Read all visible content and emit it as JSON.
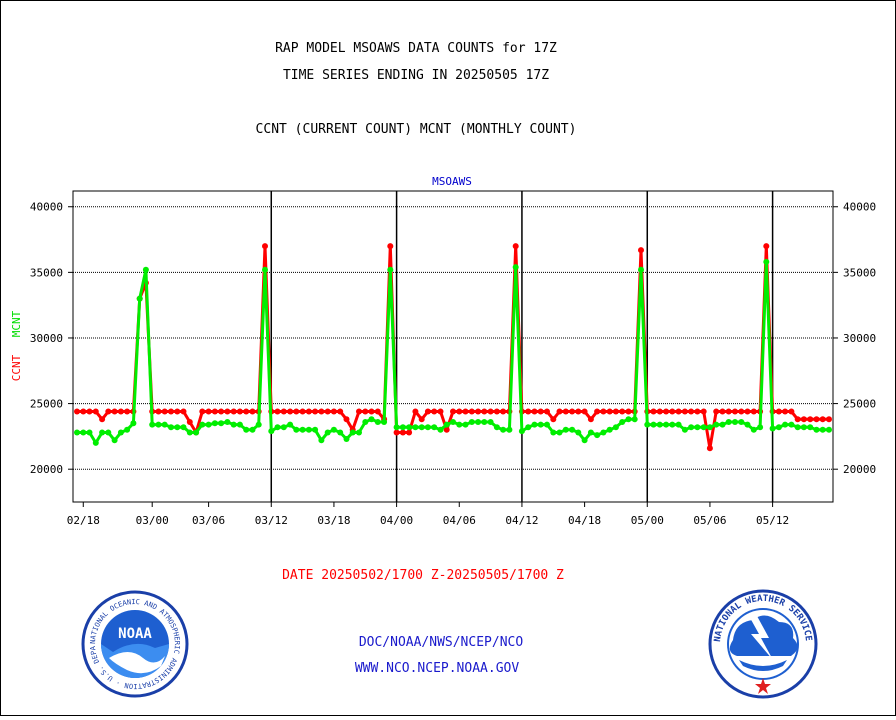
{
  "title_lines": [
    "RAP MODEL MSOAWS DATA COUNTS for 17Z",
    "TIME SERIES ENDING IN 20250505 17Z"
  ],
  "subtitle": "CCNT (CURRENT COUNT) MCNT (MONTHLY COUNT)",
  "date_range": "DATE 20250502/1700 Z-20250505/1700 Z",
  "footer": {
    "line1": "DOC/NOAA/NWS/NCEP/NCO",
    "line2": "WWW.NCO.NCEP.NOAA.GOV"
  },
  "logos": {
    "noaa": {
      "text": "NOAA",
      "ring_text": "NATIONAL OCEANIC AND ATMOSPHERIC ADMINISTRATION · U.S. DEPARTMENT OF COMMERCE"
    },
    "nws": {
      "ring_text": "NATIONAL WEATHER SERVICE"
    }
  },
  "colors": {
    "ccnt": "#ff0000",
    "mcnt": "#00ee00",
    "title": "#000000",
    "date": "#ff0000",
    "footer": "#0000cc",
    "plot_label": "#0000cc"
  },
  "chart_data": {
    "type": "line",
    "title": "MSOAWS",
    "ylabel_parts": [
      {
        "text": "CCNT",
        "color": "#ff0000"
      },
      {
        "text": "MCNT",
        "color": "#00ee00"
      }
    ],
    "ylim": [
      17500,
      41200
    ],
    "yticks": [
      20000,
      25000,
      30000,
      35000,
      40000
    ],
    "ytick_labels": [
      "20000",
      "25000",
      "30000",
      "35000",
      "40000"
    ],
    "x_count": 121,
    "xticks": [
      {
        "i": 1,
        "label": "02/18"
      },
      {
        "i": 12,
        "label": "03/00"
      },
      {
        "i": 21,
        "label": "03/06"
      },
      {
        "i": 31,
        "label": "03/12"
      },
      {
        "i": 41,
        "label": "03/18"
      },
      {
        "i": 51,
        "label": "04/00"
      },
      {
        "i": 61,
        "label": "04/06"
      },
      {
        "i": 71,
        "label": "04/12"
      },
      {
        "i": 81,
        "label": "04/18"
      },
      {
        "i": 91,
        "label": "05/00"
      },
      {
        "i": 101,
        "label": "05/06"
      },
      {
        "i": 111,
        "label": "05/12"
      }
    ],
    "day_boundaries": [
      31,
      51,
      71,
      91,
      111
    ],
    "grid": true,
    "series": [
      {
        "name": "CCNT",
        "color": "#ff0000",
        "values": [
          24400,
          24400,
          24400,
          24400,
          23800,
          24400,
          24400,
          24400,
          24400,
          24400,
          33000,
          34200,
          24400,
          24400,
          24400,
          24400,
          24400,
          24400,
          23600,
          22800,
          24400,
          24400,
          24400,
          24400,
          24400,
          24400,
          24400,
          24400,
          24400,
          24400,
          37000,
          24400,
          24400,
          24400,
          24400,
          24400,
          24400,
          24400,
          24400,
          24400,
          24400,
          24400,
          24400,
          23800,
          23000,
          24400,
          24400,
          24400,
          24400,
          23800,
          37000,
          22800,
          22800,
          22800,
          24400,
          23800,
          24400,
          24400,
          24400,
          23000,
          24400,
          24400,
          24400,
          24400,
          24400,
          24400,
          24400,
          24400,
          24400,
          24400,
          37000,
          24400,
          24400,
          24400,
          24400,
          24400,
          23800,
          24400,
          24400,
          24400,
          24400,
          24400,
          23800,
          24400,
          24400,
          24400,
          24400,
          24400,
          24400,
          24400,
          36700,
          24400,
          24400,
          24400,
          24400,
          24400,
          24400,
          24400,
          24400,
          24400,
          24400,
          21600,
          24400,
          24400,
          24400,
          24400,
          24400,
          24400,
          24400,
          24400,
          37000,
          24400,
          24400,
          24400,
          24400,
          23800,
          23800,
          23800,
          23800,
          23800,
          23800
        ]
      },
      {
        "name": "MCNT",
        "color": "#00ee00",
        "values": [
          22800,
          22800,
          22800,
          22000,
          22800,
          22800,
          22200,
          22800,
          23000,
          23500,
          33000,
          35200,
          23400,
          23400,
          23400,
          23200,
          23200,
          23200,
          22800,
          22800,
          23400,
          23400,
          23500,
          23500,
          23600,
          23400,
          23400,
          23000,
          23000,
          23400,
          35200,
          22900,
          23200,
          23200,
          23400,
          23000,
          23000,
          23000,
          23000,
          22200,
          22800,
          23000,
          22800,
          22300,
          22800,
          22800,
          23600,
          23800,
          23600,
          23600,
          35200,
          23200,
          23200,
          23200,
          23200,
          23200,
          23200,
          23200,
          23000,
          23400,
          23600,
          23400,
          23400,
          23600,
          23600,
          23600,
          23600,
          23200,
          23000,
          23000,
          35400,
          22900,
          23200,
          23400,
          23400,
          23400,
          22800,
          22800,
          23000,
          23000,
          22800,
          22200,
          22800,
          22600,
          22800,
          23000,
          23200,
          23600,
          23800,
          23800,
          35200,
          23400,
          23400,
          23400,
          23400,
          23400,
          23400,
          23000,
          23200,
          23200,
          23200,
          23200,
          23400,
          23400,
          23600,
          23600,
          23600,
          23400,
          23000,
          23200,
          35800,
          23100,
          23200,
          23400,
          23400,
          23200,
          23200,
          23200,
          23000,
          23000,
          23000
        ]
      }
    ]
  }
}
